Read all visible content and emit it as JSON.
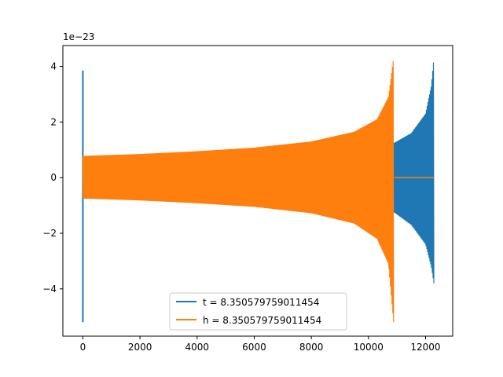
{
  "chart_data": {
    "type": "line",
    "title": "",
    "xlabel": "",
    "ylabel": "",
    "y_offset_label": "1e−23",
    "xlim": [
      -700,
      12950
    ],
    "ylim": [
      -5.7,
      4.75
    ],
    "x_ticks": [
      0,
      2000,
      4000,
      6000,
      8000,
      10000,
      12000
    ],
    "x_tick_labels": [
      "0",
      "2000",
      "4000",
      "6000",
      "8000",
      "10000",
      "12000"
    ],
    "y_ticks": [
      -4,
      -2,
      0,
      2,
      4
    ],
    "y_tick_labels": [
      "−4",
      "−2",
      "0",
      "2",
      "4"
    ],
    "grid": false,
    "legend_position": "lower-center",
    "series": [
      {
        "name": "t = 8.350579759011454",
        "color": "#1f77b4",
        "description_points": {
          "initial_spike": {
            "x": 0,
            "max": 3.85,
            "min": -5.2
          },
          "envelope": [
            {
              "x": 0,
              "upper": 0.78,
              "lower": -0.75
            },
            {
              "x": 2000,
              "upper": 0.82,
              "lower": -0.8
            },
            {
              "x": 4000,
              "upper": 0.88,
              "lower": -0.86
            },
            {
              "x": 6000,
              "upper": 0.95,
              "lower": -0.94
            },
            {
              "x": 8000,
              "upper": 1.05,
              "lower": -1.04
            },
            {
              "x": 10000,
              "upper": 1.2,
              "lower": -1.2
            },
            {
              "x": 10900,
              "upper": 1.25,
              "lower": -1.25
            },
            {
              "x": 11500,
              "upper": 1.6,
              "lower": -1.7
            },
            {
              "x": 12000,
              "upper": 2.3,
              "lower": -2.4
            },
            {
              "x": 12200,
              "upper": 3.3,
              "lower": -3.2
            },
            {
              "x": 12290,
              "upper": 4.3,
              "lower": -3.8
            }
          ]
        }
      },
      {
        "name": "h = 8.350579759011454",
        "color": "#ff7f0e",
        "description_points": {
          "envelope": [
            {
              "x": 0,
              "upper": 0.78,
              "lower": -0.75
            },
            {
              "x": 2000,
              "upper": 0.85,
              "lower": -0.82
            },
            {
              "x": 4000,
              "upper": 0.95,
              "lower": -0.92
            },
            {
              "x": 6000,
              "upper": 1.08,
              "lower": -1.05
            },
            {
              "x": 8000,
              "upper": 1.3,
              "lower": -1.28
            },
            {
              "x": 9500,
              "upper": 1.65,
              "lower": -1.65
            },
            {
              "x": 10300,
              "upper": 2.1,
              "lower": -2.2
            },
            {
              "x": 10700,
              "upper": 2.9,
              "lower": -3.1
            },
            {
              "x": 10880,
              "upper": 4.3,
              "lower": -5.2
            }
          ],
          "tail": {
            "x_start": 10900,
            "x_end": 12290,
            "value": 0
          }
        }
      }
    ]
  }
}
